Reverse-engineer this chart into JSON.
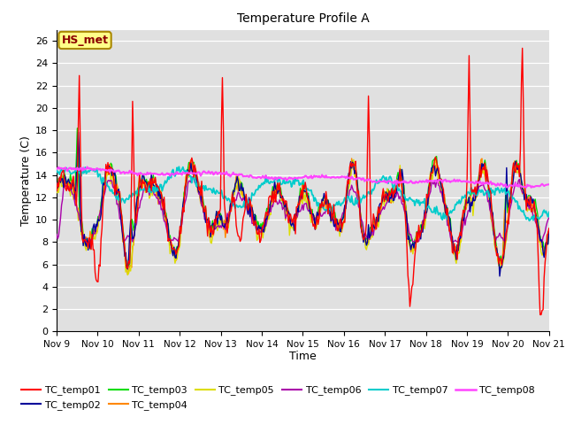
{
  "title": "Temperature Profile A",
  "xlabel": "Time",
  "ylabel": "Temperature (C)",
  "ylim": [
    0,
    27
  ],
  "annotation": "HS_met",
  "background_color": "#e0e0e0",
  "series_colors": {
    "TC_temp01": "#ff0000",
    "TC_temp02": "#000099",
    "TC_temp03": "#00dd00",
    "TC_temp04": "#ff8800",
    "TC_temp05": "#dddd00",
    "TC_temp06": "#aa00aa",
    "TC_temp07": "#00cccc",
    "TC_temp08": "#ff44ff"
  },
  "n_points": 500
}
